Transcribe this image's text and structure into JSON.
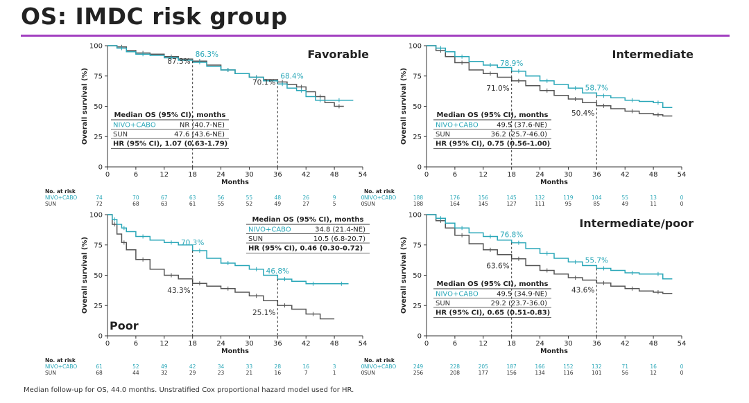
{
  "title": "OS: IMDC risk group",
  "footnote": "Median follow-up for OS, 44.0 months. Unstratified Cox proportional hazard model used for HR.",
  "colors": {
    "nivo_cabo": "#2aa7b8",
    "sun": "#555555",
    "accent_rule": "#a23fc0"
  },
  "chart_data": [
    {
      "type": "line",
      "panel_label": "Favorable",
      "xlabel": "Months",
      "ylabel": "Overall survival (%)",
      "xlim": [
        0,
        54
      ],
      "ylim": [
        0,
        100
      ],
      "xticks": [
        0,
        6,
        12,
        18,
        24,
        30,
        36,
        42,
        48,
        54
      ],
      "yticks": [
        0,
        25,
        50,
        75,
        100
      ],
      "series": [
        {
          "name": "NIVO+CABO",
          "color": "#2aa7b8",
          "x": [
            0,
            2,
            4,
            6,
            9,
            12,
            15,
            18,
            21,
            24,
            27,
            30,
            33,
            36,
            38,
            40,
            42,
            44,
            46,
            48,
            50,
            52
          ],
          "y": [
            100,
            98,
            95,
            93,
            92,
            90,
            88,
            86.3,
            83,
            80,
            77,
            74,
            71,
            68.4,
            65,
            63,
            58,
            55,
            55,
            55,
            55,
            55
          ]
        },
        {
          "name": "SUN",
          "color": "#555555",
          "x": [
            0,
            2,
            4,
            6,
            9,
            12,
            15,
            18,
            21,
            24,
            27,
            30,
            33,
            36,
            38,
            40,
            42,
            44,
            46,
            48,
            50
          ],
          "y": [
            100,
            99,
            96,
            94,
            93,
            91,
            89,
            87.3,
            84,
            80,
            77,
            74,
            72,
            70.1,
            68,
            66,
            62,
            58,
            53,
            50,
            50
          ]
        }
      ],
      "annotations": [
        {
          "x": 18,
          "nivo_label": "86.3%",
          "sun_label": "87.3%"
        },
        {
          "x": 36,
          "nivo_label": "68.4%",
          "sun_label": "70.1%"
        }
      ],
      "legend_table": {
        "header": "Median OS (95% CI), months",
        "rows": [
          {
            "arm": "NIVO+CABO",
            "value": "NR (40.7-NE)"
          },
          {
            "arm": "SUN",
            "value": "47.6 (43.6-NE)"
          }
        ],
        "hr": "HR (95% CI), 1.07 (0.63-1.79)"
      },
      "at_risk": {
        "label": "No. at risk",
        "times": [
          0,
          6,
          12,
          18,
          24,
          30,
          36,
          42,
          48,
          54
        ],
        "rows": [
          {
            "arm": "NIVO+CABO",
            "values": [
              74,
              70,
              67,
              63,
              56,
              55,
              48,
              26,
              9,
              0
            ]
          },
          {
            "arm": "SUN",
            "values": [
              72,
              68,
              63,
              61,
              55,
              52,
              49,
              27,
              5,
              0
            ]
          }
        ]
      }
    },
    {
      "type": "line",
      "panel_label": "Intermediate",
      "xlabel": "Months",
      "ylabel": "Overall survival (%)",
      "xlim": [
        0,
        54
      ],
      "ylim": [
        0,
        100
      ],
      "xticks": [
        0,
        6,
        12,
        18,
        24,
        30,
        36,
        42,
        48,
        54
      ],
      "yticks": [
        0,
        25,
        50,
        75,
        100
      ],
      "series": [
        {
          "name": "NIVO+CABO",
          "color": "#2aa7b8",
          "x": [
            0,
            2,
            4,
            6,
            9,
            12,
            15,
            18,
            21,
            24,
            27,
            30,
            33,
            36,
            39,
            42,
            45,
            48,
            50,
            52
          ],
          "y": [
            100,
            98,
            95,
            91,
            87,
            84,
            82,
            78.9,
            75,
            71,
            68,
            65,
            61,
            58.7,
            57,
            55,
            54,
            53,
            49,
            49
          ]
        },
        {
          "name": "SUN",
          "color": "#555555",
          "x": [
            0,
            2,
            4,
            6,
            9,
            12,
            15,
            18,
            21,
            24,
            27,
            30,
            33,
            36,
            39,
            42,
            45,
            48,
            50,
            52
          ],
          "y": [
            100,
            96,
            91,
            86,
            80,
            77,
            74,
            71.0,
            67,
            63,
            59,
            56,
            53,
            50.4,
            48,
            46,
            44,
            43,
            42,
            42
          ]
        }
      ],
      "annotations": [
        {
          "x": 18,
          "nivo_label": "78.9%",
          "sun_label": "71.0%"
        },
        {
          "x": 36,
          "nivo_label": "58.7%",
          "sun_label": "50.4%"
        }
      ],
      "legend_table": {
        "header": "Median OS (95% CI), months",
        "rows": [
          {
            "arm": "NIVO+CABO",
            "value": "49.5 (37.6-NE)"
          },
          {
            "arm": "SUN",
            "value": "36.2 (25.7-46.0)"
          }
        ],
        "hr": "HR (95% CI), 0.75 (0.56-1.00)"
      },
      "at_risk": {
        "label": "No. at risk",
        "times": [
          0,
          6,
          12,
          18,
          24,
          30,
          36,
          42,
          48,
          54
        ],
        "rows": [
          {
            "arm": "NIVO+CABO",
            "values": [
              188,
              176,
              156,
              145,
              132,
              119,
              104,
              55,
              13,
              0
            ]
          },
          {
            "arm": "SUN",
            "values": [
              188,
              164,
              145,
              127,
              111,
              95,
              85,
              49,
              11,
              0
            ]
          }
        ]
      }
    },
    {
      "type": "line",
      "panel_label": "Poor",
      "xlabel": "Months",
      "ylabel": "Overall survival (%)",
      "xlim": [
        0,
        54
      ],
      "ylim": [
        0,
        100
      ],
      "xticks": [
        0,
        6,
        12,
        18,
        24,
        30,
        36,
        42,
        48,
        54
      ],
      "yticks": [
        0,
        25,
        50,
        75,
        100
      ],
      "series": [
        {
          "name": "NIVO+CABO",
          "color": "#2aa7b8",
          "x": [
            0,
            1,
            2,
            3,
            4,
            6,
            9,
            12,
            15,
            18,
            21,
            24,
            27,
            30,
            33,
            36,
            39,
            42,
            45,
            48,
            51
          ],
          "y": [
            100,
            96,
            92,
            89,
            86,
            82,
            79,
            77,
            75,
            70.3,
            64,
            60,
            58,
            55,
            50,
            46.8,
            45,
            43,
            43,
            43,
            43
          ]
        },
        {
          "name": "SUN",
          "color": "#555555",
          "x": [
            0,
            1,
            2,
            3,
            4,
            6,
            9,
            12,
            15,
            18,
            21,
            24,
            27,
            30,
            33,
            36,
            39,
            42,
            45,
            48
          ],
          "y": [
            100,
            92,
            84,
            77,
            71,
            63,
            55,
            50,
            47,
            43.3,
            41,
            39,
            36,
            33,
            29,
            25.1,
            22,
            18,
            14,
            14
          ]
        }
      ],
      "annotations": [
        {
          "x": 18,
          "nivo_label": "70.3%",
          "sun_label": "43.3%"
        },
        {
          "x": 36,
          "nivo_label": "46.8%",
          "sun_label": "25.1%"
        }
      ],
      "legend_table": {
        "header": "Median OS (95% CI), months",
        "rows": [
          {
            "arm": "NIVO+CABO",
            "value": "34.8 (21.4-NE)"
          },
          {
            "arm": "SUN",
            "value": "10.5 (6.8-20.7)"
          }
        ],
        "hr": "HR (95% CI), 0.46 (0.30-0.72)"
      },
      "at_risk": {
        "label": "No. at risk",
        "times": [
          0,
          6,
          12,
          18,
          24,
          30,
          36,
          42,
          48,
          54
        ],
        "rows": [
          {
            "arm": "NIVO+CABO",
            "values": [
              61,
              52,
              49,
              42,
              34,
              33,
              28,
              16,
              3,
              0
            ]
          },
          {
            "arm": "SUN",
            "values": [
              68,
              44,
              32,
              29,
              23,
              21,
              16,
              7,
              1,
              0
            ]
          }
        ]
      }
    },
    {
      "type": "line",
      "panel_label": "Intermediate/poor",
      "xlabel": "Months",
      "ylabel": "Overall survival (%)",
      "xlim": [
        0,
        54
      ],
      "ylim": [
        0,
        100
      ],
      "xticks": [
        0,
        6,
        12,
        18,
        24,
        30,
        36,
        42,
        48,
        54
      ],
      "yticks": [
        0,
        25,
        50,
        75,
        100
      ],
      "series": [
        {
          "name": "NIVO+CABO",
          "color": "#2aa7b8",
          "x": [
            0,
            2,
            4,
            6,
            9,
            12,
            15,
            18,
            21,
            24,
            27,
            30,
            33,
            36,
            39,
            42,
            45,
            48,
            50,
            52
          ],
          "y": [
            100,
            97,
            93,
            89,
            85,
            82,
            79,
            76.8,
            72,
            68,
            64,
            61,
            58,
            55.7,
            54,
            52,
            51,
            51,
            47,
            47
          ]
        },
        {
          "name": "SUN",
          "color": "#555555",
          "x": [
            0,
            2,
            4,
            6,
            9,
            12,
            15,
            18,
            21,
            24,
            27,
            30,
            33,
            36,
            39,
            42,
            45,
            48,
            50,
            52
          ],
          "y": [
            100,
            95,
            89,
            83,
            76,
            71,
            67,
            63.6,
            58,
            54,
            51,
            48,
            46,
            43.6,
            41,
            39,
            37,
            36,
            35,
            35
          ]
        }
      ],
      "annotations": [
        {
          "x": 18,
          "nivo_label": "76.8%",
          "sun_label": "63.6%"
        },
        {
          "x": 36,
          "nivo_label": "55.7%",
          "sun_label": "43.6%"
        }
      ],
      "legend_table": {
        "header": "Median OS (95% CI), months",
        "rows": [
          {
            "arm": "NIVO+CABO",
            "value": "49.5 (34.9-NE)"
          },
          {
            "arm": "SUN",
            "value": "29.2 (23.7-36.0)"
          }
        ],
        "hr": "HR (95% CI), 0.65 (0.51-0.83)"
      },
      "at_risk": {
        "label": "No. at risk",
        "times": [
          0,
          6,
          12,
          18,
          24,
          30,
          36,
          42,
          48,
          54
        ],
        "rows": [
          {
            "arm": "NIVO+CABO",
            "values": [
              249,
              228,
              205,
              187,
              166,
              152,
              132,
              71,
              16,
              0
            ]
          },
          {
            "arm": "SUN",
            "values": [
              256,
              208,
              177,
              156,
              134,
              116,
              101,
              56,
              12,
              0
            ]
          }
        ]
      }
    }
  ]
}
